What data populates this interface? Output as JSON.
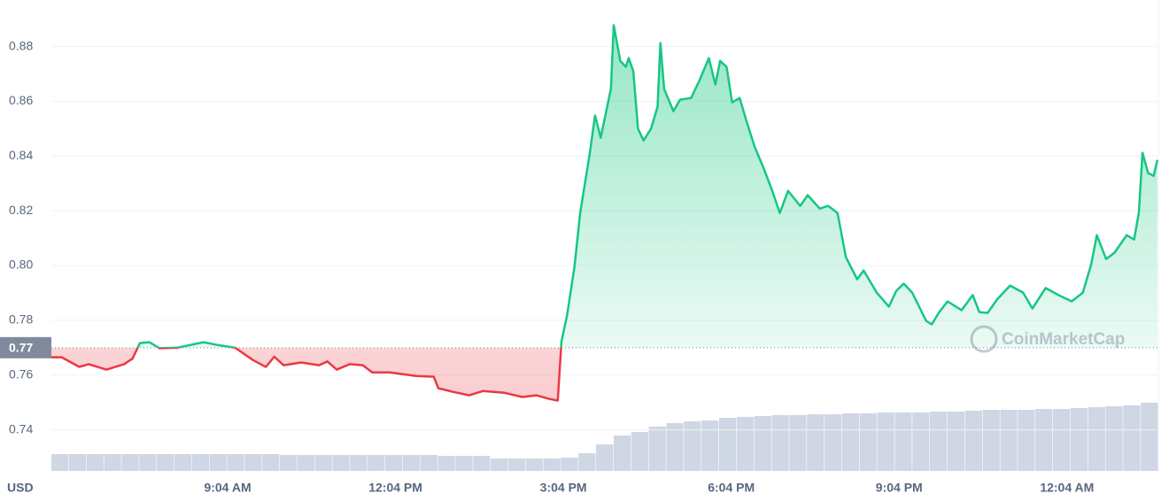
{
  "chart_data": {
    "type": "line",
    "unit_label": "USD",
    "watermark": "CoinMarketCap",
    "baseline": 0.77,
    "up_color": "#16c784",
    "down_color": "#ea3943",
    "baseline_color": "#808a9d",
    "grid": true,
    "xlim": [
      355,
      1542
    ],
    "xticks": [
      {
        "value": 544,
        "label": "9:04 AM"
      },
      {
        "value": 724,
        "label": "12:04 PM"
      },
      {
        "value": 904,
        "label": "3:04 PM"
      },
      {
        "value": 1084,
        "label": "6:04 PM"
      },
      {
        "value": 1264,
        "label": "9:04 PM"
      },
      {
        "value": 1444,
        "label": "12:04 AM"
      }
    ],
    "ylim": [
      0.725,
      0.897
    ],
    "yticks": [
      0.74,
      0.76,
      0.78,
      {
        "value": 0.8,
        "label": "0.80"
      },
      0.82,
      0.84,
      0.86,
      0.88
    ],
    "x": [
      355,
      366,
      385,
      395,
      414,
      433,
      442,
      450,
      460,
      471,
      490,
      518,
      533,
      552,
      571,
      585,
      594,
      604,
      623,
      642,
      651,
      661,
      675,
      689,
      699,
      718,
      746,
      765,
      770,
      784,
      803,
      818,
      841,
      860,
      875,
      889,
      898,
      902,
      908,
      916,
      922,
      932,
      938,
      944,
      951,
      955,
      958,
      965,
      971,
      974,
      979,
      984,
      990,
      998,
      1005,
      1008,
      1012,
      1022,
      1029,
      1041,
      1050,
      1060,
      1067,
      1072,
      1079,
      1085,
      1093,
      1100,
      1109,
      1119,
      1128,
      1136,
      1145,
      1158,
      1166,
      1179,
      1188,
      1198,
      1207,
      1219,
      1226,
      1240,
      1253,
      1261,
      1269,
      1278,
      1293,
      1299,
      1307,
      1316,
      1331,
      1343,
      1350,
      1359,
      1369,
      1383,
      1397,
      1407,
      1421,
      1435,
      1449,
      1461,
      1470,
      1476,
      1486,
      1495,
      1508,
      1516,
      1521,
      1525,
      1531,
      1537,
      1541
    ],
    "values": [
      0.7665,
      0.7665,
      0.763,
      0.764,
      0.762,
      0.764,
      0.766,
      0.7717,
      0.772,
      0.7698,
      0.77,
      0.772,
      0.771,
      0.77,
      0.7655,
      0.763,
      0.7667,
      0.7636,
      0.7646,
      0.7636,
      0.765,
      0.762,
      0.764,
      0.7636,
      0.761,
      0.761,
      0.7597,
      0.7594,
      0.7552,
      0.754,
      0.7526,
      0.7542,
      0.7535,
      0.752,
      0.7526,
      0.7513,
      0.7507,
      0.7723,
      0.782,
      0.7998,
      0.8192,
      0.8402,
      0.8548,
      0.8467,
      0.858,
      0.8645,
      0.8878,
      0.8748,
      0.8726,
      0.8758,
      0.871,
      0.85,
      0.8457,
      0.85,
      0.858,
      0.8813,
      0.8645,
      0.8564,
      0.8606,
      0.8612,
      0.8677,
      0.8758,
      0.8661,
      0.8748,
      0.8726,
      0.8596,
      0.8612,
      0.8532,
      0.8435,
      0.8354,
      0.8273,
      0.8192,
      0.8273,
      0.8218,
      0.8257,
      0.8208,
      0.8218,
      0.8192,
      0.803,
      0.795,
      0.7982,
      0.7901,
      0.785,
      0.7908,
      0.7934,
      0.7901,
      0.7798,
      0.7785,
      0.783,
      0.7869,
      0.7837,
      0.7892,
      0.783,
      0.7827,
      0.7876,
      0.7927,
      0.7901,
      0.7843,
      0.7918,
      0.7892,
      0.7869,
      0.7901,
      0.8005,
      0.8111,
      0.8024,
      0.8047,
      0.8111,
      0.8095,
      0.8192,
      0.8412,
      0.8338,
      0.8328,
      0.8386
    ],
    "volume": {
      "color": "#cfd6e4",
      "ylim": [
        0,
        100
      ],
      "values": [
        19,
        19,
        19,
        19,
        19,
        19,
        19,
        19,
        19,
        19,
        19,
        19,
        19,
        18,
        18,
        18,
        18,
        18,
        18,
        18,
        18,
        18,
        17,
        17,
        17,
        14,
        14,
        14,
        14,
        15,
        20,
        30,
        40,
        44,
        50,
        54,
        56,
        57,
        60,
        61,
        62,
        63,
        63,
        64,
        64,
        65,
        65,
        66,
        66,
        66,
        67,
        67,
        68,
        69,
        69,
        69,
        70,
        70,
        71,
        72,
        73,
        74,
        77
      ]
    }
  }
}
